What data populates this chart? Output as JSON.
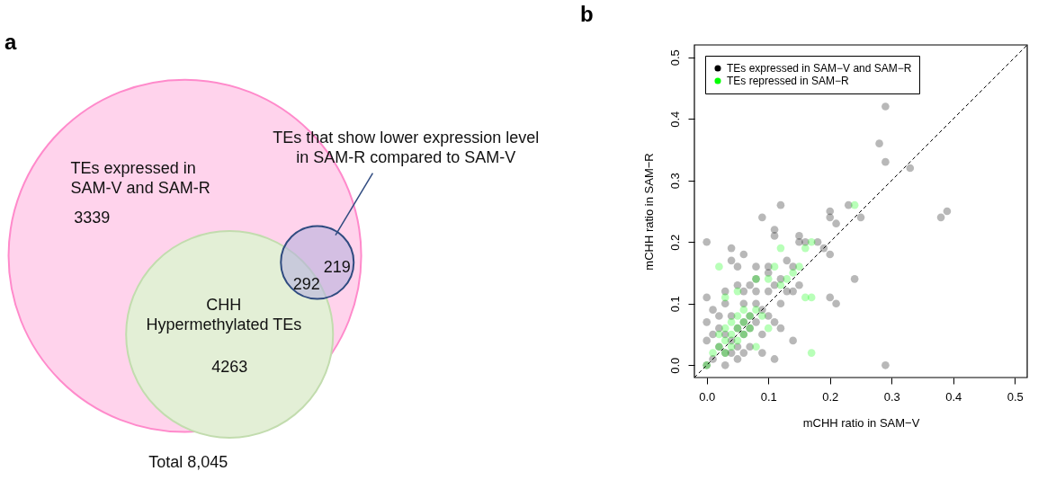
{
  "chart_data": [
    {
      "type": "other",
      "title": "a",
      "annotations": [
        "TEs expressed in\nSAM-V and SAM-R",
        "3339",
        "CHH\nHypermethylated TEs",
        "4263",
        "292",
        "219",
        "TEs that show lower expression level\nin SAM-R compared to SAM-V",
        "Total 8,045"
      ]
    },
    {
      "type": "scatter",
      "title": "b",
      "xlabel": "mCHH ratio in SAM−V",
      "ylabel": "mCHH ratio in SAM−R",
      "xlim": [
        -0.02,
        0.52
      ],
      "ylim": [
        -0.02,
        0.52
      ],
      "xticks": [
        {
          "value": 0,
          "label": "0.0"
        },
        0.1,
        0.2,
        0.3,
        0.4,
        0.5
      ],
      "yticks": [
        {
          "value": 0,
          "label": "0.0"
        },
        0.1,
        0.2,
        0.3,
        0.4,
        0.5
      ],
      "grid": false,
      "legend": "top left",
      "marker": "circle",
      "series": [
        {
          "name": "TEs expressed in SAM−V and SAM−R",
          "color": "#000000",
          "x": [
            0.29,
            0.28,
            0.29,
            0.33,
            0.12,
            0.23,
            0.2,
            0.2,
            0.25,
            0.38,
            0.39,
            0.09,
            0.11,
            0.11,
            0.21,
            0.0,
            0.15,
            0.15,
            0.18,
            0.19,
            0.04,
            0.06,
            0.2,
            0.04,
            0.05,
            0.08,
            0.1,
            0.13,
            0.14,
            0.16,
            0.24,
            0.2,
            0.21,
            0.14,
            0.29,
            0.11,
            0.0,
            0.01,
            0.03,
            0.05,
            0.07,
            0.01,
            0.02,
            0.03,
            0.03,
            0.04,
            0.05,
            0.05,
            0.06,
            0.06,
            0.07,
            0.07,
            0.08,
            0.08,
            0.09,
            0.02,
            0.04,
            0.06,
            0.08,
            0.1,
            0.09,
            0.07,
            0.05,
            0.03,
            0.0,
            0.1,
            0.12,
            0.13,
            0.11,
            0.12,
            0.09,
            0.02,
            0.01,
            0.0,
            0.0,
            0.03,
            0.06,
            0.08,
            0.1,
            0.11,
            0.12,
            0.14,
            0.15,
            0.06,
            0.04
          ],
          "values": [
            0.42,
            0.36,
            0.33,
            0.32,
            0.26,
            0.26,
            0.25,
            0.24,
            0.24,
            0.24,
            0.25,
            0.24,
            0.22,
            0.21,
            0.23,
            0.2,
            0.21,
            0.2,
            0.2,
            0.19,
            0.19,
            0.18,
            0.18,
            0.17,
            0.16,
            0.16,
            0.16,
            0.17,
            0.16,
            0.2,
            0.14,
            0.11,
            0.1,
            0.04,
            0.0,
            0.01,
            0.11,
            0.09,
            0.12,
            0.13,
            0.13,
            0.01,
            0.03,
            0.02,
            0.05,
            0.04,
            0.06,
            0.03,
            0.07,
            0.05,
            0.08,
            0.06,
            0.1,
            0.07,
            0.09,
            0.06,
            0.08,
            0.1,
            0.12,
            0.08,
            0.05,
            0.03,
            0.01,
            0.0,
            0.0,
            0.12,
            0.14,
            0.12,
            0.07,
            0.06,
            0.02,
            0.08,
            0.05,
            0.04,
            0.07,
            0.1,
            0.12,
            0.14,
            0.15,
            0.13,
            0.1,
            0.12,
            0.13,
            0.02,
            0.02
          ]
        },
        {
          "name": "TEs repressed in SAM−R",
          "color": "#00ff00",
          "x": [
            0.0,
            0.01,
            0.02,
            0.03,
            0.04,
            0.05,
            0.06,
            0.07,
            0.08,
            0.09,
            0.02,
            0.03,
            0.04,
            0.05,
            0.06,
            0.04,
            0.05,
            0.06,
            0.03,
            0.07,
            0.02,
            0.12,
            0.16,
            0.17,
            0.24,
            0.17,
            0.17,
            0.16,
            0.15,
            0.1,
            0.11,
            0.14,
            0.08,
            0.12,
            0.03,
            0.05,
            0.08,
            0.1,
            0.13
          ],
          "values": [
            0.0,
            0.02,
            0.03,
            0.04,
            0.05,
            0.06,
            0.07,
            0.08,
            0.09,
            0.08,
            0.05,
            0.06,
            0.07,
            0.08,
            0.09,
            0.03,
            0.04,
            0.05,
            0.02,
            0.06,
            0.16,
            0.19,
            0.19,
            0.2,
            0.26,
            0.11,
            0.02,
            0.11,
            0.16,
            0.14,
            0.16,
            0.15,
            0.03,
            0.13,
            0.11,
            0.12,
            0.14,
            0.06,
            0.14
          ]
        },
        {
          "type": "line",
          "color": "#000000",
          "line_style": "dashed",
          "marker": "none",
          "x": [
            -0.02,
            0.52
          ],
          "values": [
            -0.02,
            0.52
          ]
        }
      ]
    }
  ]
}
